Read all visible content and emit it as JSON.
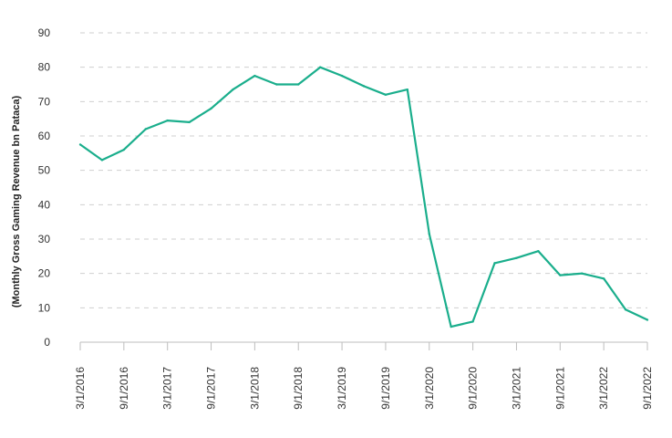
{
  "chart_data": {
    "type": "line",
    "title": "",
    "xlabel": "",
    "ylabel": "(Monthly Gross Gaming Revenue bn Pataca)",
    "ylim": [
      0,
      90
    ],
    "yticks": [
      0,
      10,
      20,
      30,
      40,
      50,
      60,
      70,
      80,
      90
    ],
    "grid": true,
    "legend": "none",
    "line_color": "#1aae8c",
    "x_tick_labels": [
      "3/1/2016",
      "9/1/2016",
      "3/1/2017",
      "9/1/2017",
      "3/1/2018",
      "9/1/2018",
      "3/1/2019",
      "9/1/2019",
      "3/1/2020",
      "9/1/2020",
      "3/1/2021",
      "9/1/2021",
      "3/1/2022",
      "9/1/2022"
    ],
    "series": [
      {
        "name": "",
        "x": [
          "3/1/2016",
          "6/1/2016",
          "9/1/2016",
          "12/1/2016",
          "3/1/2017",
          "6/1/2017",
          "9/1/2017",
          "12/1/2017",
          "3/1/2018",
          "6/1/2018",
          "9/1/2018",
          "12/1/2018",
          "3/1/2019",
          "6/1/2019",
          "9/1/2019",
          "12/1/2019",
          "3/1/2020",
          "6/1/2020",
          "9/1/2020",
          "12/1/2020",
          "3/1/2021",
          "6/1/2021",
          "9/1/2021",
          "12/1/2021",
          "3/1/2022",
          "6/1/2022",
          "9/1/2022"
        ],
        "values": [
          57.5,
          53,
          56,
          62,
          64.5,
          64,
          68,
          73.5,
          77.5,
          75,
          75,
          80,
          77.5,
          74.5,
          72,
          73.5,
          31.5,
          4.5,
          6,
          23,
          24.5,
          26.5,
          19.5,
          20,
          18.5,
          9.5,
          6.5
        ]
      }
    ]
  }
}
